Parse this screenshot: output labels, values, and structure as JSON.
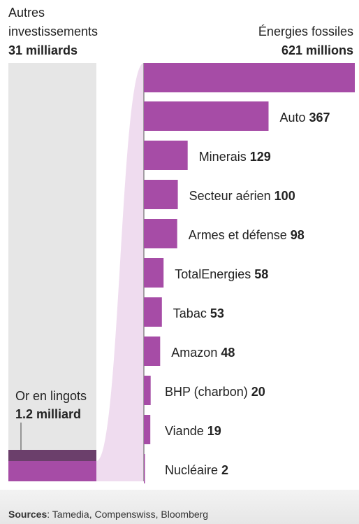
{
  "sources": {
    "label": "Sources",
    "text": ": Tamedia, Compenswiss, Bloomberg"
  },
  "colors": {
    "bar": "#a64ca6",
    "other_investments_bg": "#e6e6e6",
    "connector": "#efdcef",
    "gold_top": "#6b3f6b"
  },
  "chart_data": {
    "type": "bar",
    "unit_note": "millions",
    "stack": [
      {
        "line1": "Autres",
        "line2": "investissements",
        "value_label": "31 milliards",
        "value_millions": 31000
      },
      {
        "line1": "Or en lingots",
        "value_label": "1.2 milliard",
        "value_millions": 1200
      }
    ],
    "breakdown_title": "Énergies fossiles",
    "breakdown_total_label": "621 millions",
    "breakdown_total": 621,
    "categories": [
      "Auto",
      "Minerais",
      "Secteur aérien",
      "Armes et défense",
      "TotalEnergies",
      "Tabac",
      "Amazon",
      "BHP (charbon)",
      "Viande",
      "Nucléaire"
    ],
    "values": [
      367,
      129,
      100,
      98,
      58,
      53,
      48,
      20,
      19,
      2
    ],
    "value_labels": [
      "367",
      "129",
      "100",
      "98",
      "58",
      "53",
      "48",
      "20",
      "19",
      "2"
    ]
  }
}
